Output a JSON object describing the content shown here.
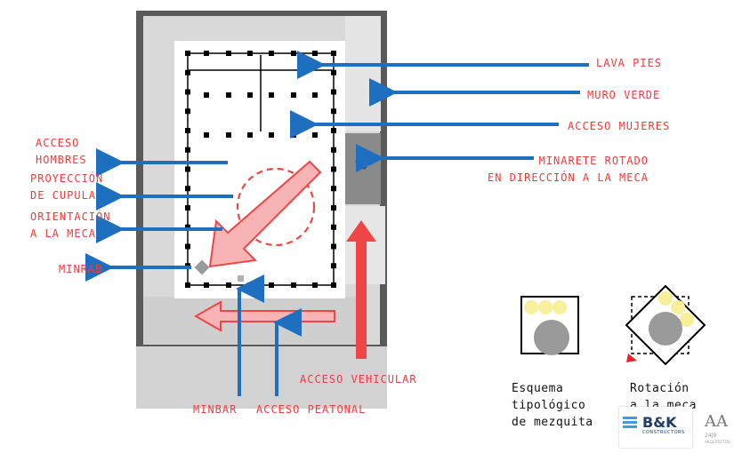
{
  "labels": {
    "lava_pies": "LAVA PIES",
    "muro_verde": "MURO VERDE",
    "acceso_mujeres": "ACCESO MUJERES",
    "minarete": "MINARETE ROTADO\nEN DIRECCIÓN A LA MECA",
    "acceso_hombres": "ACCESO\nHOMBRES",
    "proyeccion_cupula": "PROYECCIÓN\nDE CUPULA",
    "orientacion": "ORIENTACIÓN\nA LA MECA",
    "minrab": "MINRAB",
    "acceso_vehicular": "ACCESO VEHICULAR",
    "minbar": "MINBAR",
    "acceso_peatonal": "ACCESO PEATONAL",
    "esquema": "Esquema\ntipológico\nde mezquita",
    "rotacion": "Rotación\na la meca"
  },
  "logos": {
    "bk_main": "B&K",
    "bk_sub": "CONSTRUCTORS",
    "aa_main": "AA",
    "aa_num": "24|9",
    "aa_sub": "ARQUITECTOS"
  },
  "colors": {
    "label_red": "#f23a3a",
    "arrow_blue": "#1f6fc0",
    "arrow_red": "#f04545",
    "wall_dark": "#555555",
    "site_gray": "#d0d0d0",
    "dome_yellow": "#f7ef9a",
    "dome_gray": "#9a9a9a"
  }
}
